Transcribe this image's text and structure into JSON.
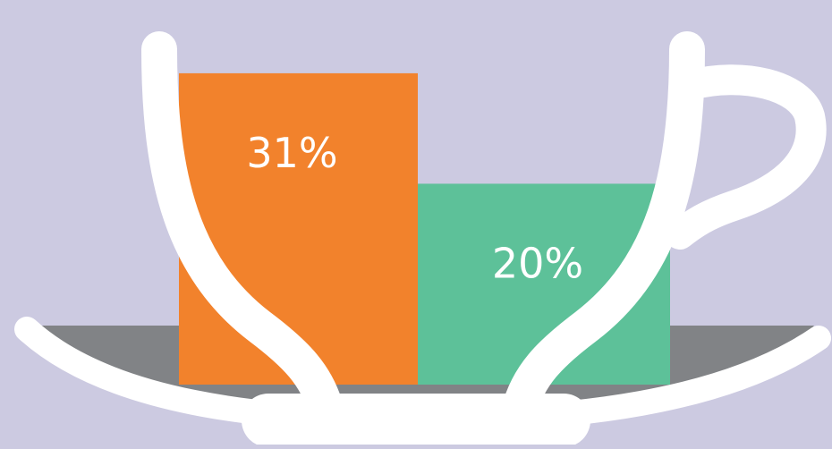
{
  "chart_data": {
    "type": "bar",
    "categories": [
      "",
      ""
    ],
    "values": [
      31,
      20
    ],
    "value_labels": [
      "31%",
      "20%"
    ],
    "ylim": [
      0,
      35
    ],
    "title": "",
    "xlabel": "",
    "ylabel": "",
    "grid": false,
    "legend": "none"
  },
  "colors": {
    "background": "#cccae1",
    "bar_left": "#f2822c",
    "bar_right": "#5dc199",
    "saucer": "#818386",
    "cup_outline": "#ffffff",
    "label_text": "#ffffff"
  },
  "icons": {
    "cup": "teacup-illustration",
    "saucer": "saucer-illustration"
  }
}
